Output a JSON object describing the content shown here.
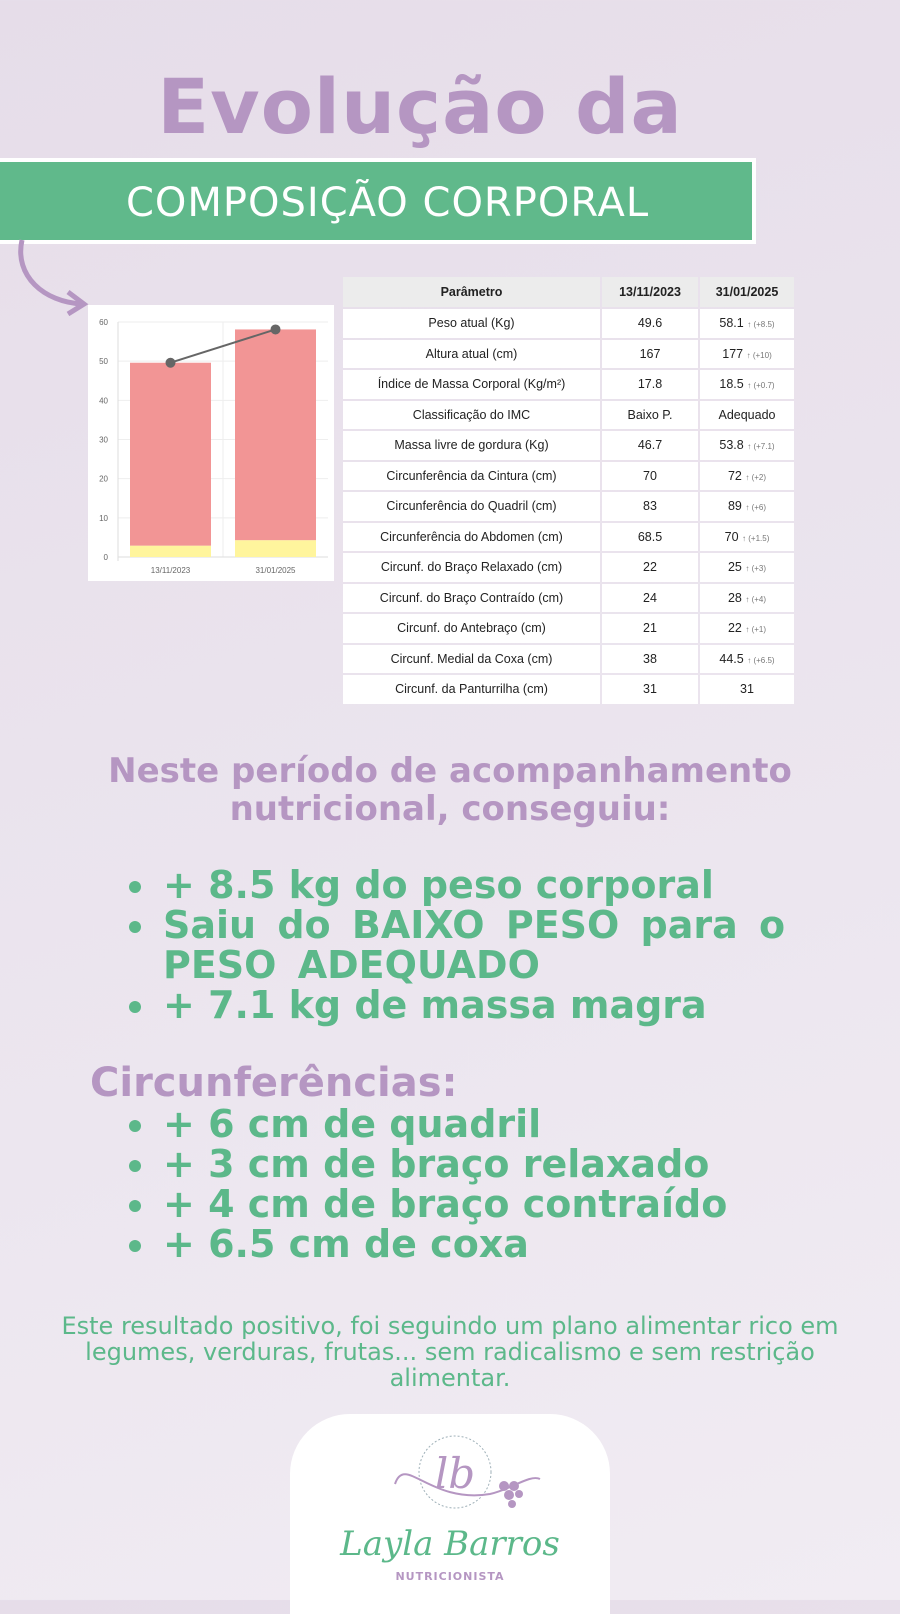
{
  "header": {
    "title": "Evolução da",
    "subtitle": "COMPOSIÇÃO CORPORAL"
  },
  "chart_data": {
    "type": "bar",
    "stacked": true,
    "categories": [
      "13/11/2023",
      "31/01/2025"
    ],
    "series": [
      {
        "kind": "bar",
        "color": "#fff59d",
        "values": [
          2.9,
          4.3
        ]
      },
      {
        "kind": "bar",
        "color": "#f29595",
        "values": [
          46.7,
          53.8
        ]
      },
      {
        "kind": "line",
        "color": "#666666",
        "values": [
          49.6,
          58.1
        ]
      }
    ],
    "yticks": [
      0,
      10,
      20,
      30,
      40,
      50,
      60
    ],
    "ylim": [
      0,
      60
    ],
    "grid": true
  },
  "table": {
    "headers": [
      "Parâmetro",
      "13/11/2023",
      "31/01/2025"
    ],
    "rows": [
      [
        "Peso atual (Kg)",
        "49.6",
        "58.1",
        "↑ (+8.5)"
      ],
      [
        "Altura atual (cm)",
        "167",
        "177",
        "↑ (+10)"
      ],
      [
        "Índice de Massa Corporal (Kg/m²)",
        "17.8",
        "18.5",
        "↑ (+0.7)"
      ],
      [
        "Classificação do IMC",
        "Baixo P.",
        "Adequado",
        ""
      ],
      [
        "Massa livre de gordura (Kg)",
        "46.7",
        "53.8",
        "↑ (+7.1)"
      ],
      [
        "Circunferência da Cintura (cm)",
        "70",
        "72",
        "↑ (+2)"
      ],
      [
        "Circunferência do Quadril (cm)",
        "83",
        "89",
        "↑ (+6)"
      ],
      [
        "Circunferência do Abdomen (cm)",
        "68.5",
        "70",
        "↑ (+1.5)"
      ],
      [
        "Circunf. do Braço Relaxado (cm)",
        "22",
        "25",
        "↑ (+3)"
      ],
      [
        "Circunf. do Braço Contraído (cm)",
        "24",
        "28",
        "↑ (+4)"
      ],
      [
        "Circunf. do Antebraço (cm)",
        "21",
        "22",
        "↑ (+1)"
      ],
      [
        "Circunf. Medial da Coxa (cm)",
        "38",
        "44.5",
        "↑ (+6.5)"
      ],
      [
        "Circunf. da Panturrilha (cm)",
        "31",
        "31",
        ""
      ]
    ]
  },
  "summary": {
    "intro": "Neste período de acompanhamento nutricional, conseguiu:",
    "items": [
      "+ 8.5 kg do peso corporal",
      "Saiu do BAIXO PESO para o PESO ADEQUADO",
      " + 7.1 kg de massa magra"
    ]
  },
  "circumferences": {
    "heading": "Circunferências:",
    "items": [
      "+ 6 cm de quadril",
      "+ 3 cm de braço relaxado",
      "+ 4 cm de braço contraído",
      "+ 6.5 cm de coxa"
    ]
  },
  "footer": "Este resultado positivo, foi seguindo um plano alimentar rico em legumes, verduras, frutas... sem radicalismo e sem restrição alimentar.",
  "logo": {
    "monogram": "lb",
    "name": "Layla Barros",
    "subtitle": "NUTRICIONISTA"
  }
}
